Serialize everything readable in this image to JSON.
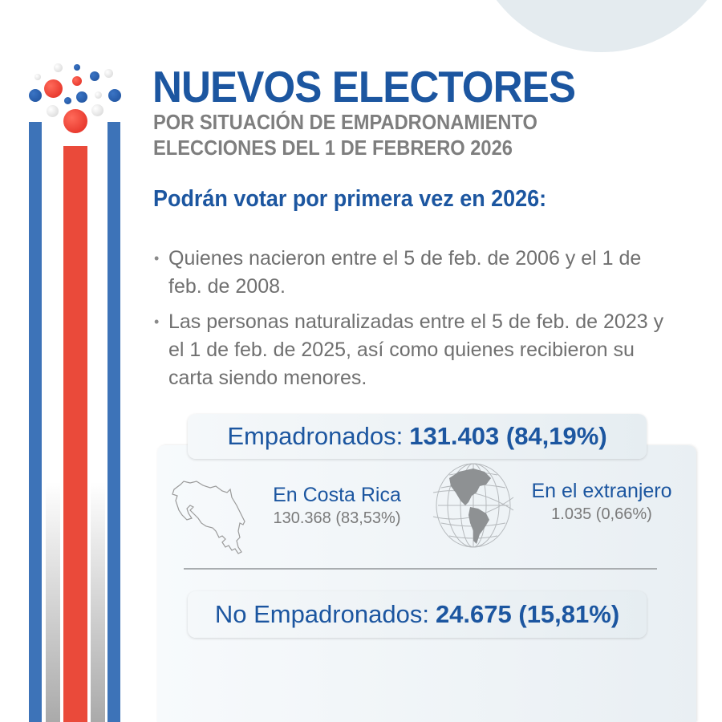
{
  "header": {
    "title": "NUEVOS ELECTORES",
    "subtitle_line1": "POR SITUACIÓN DE EMPADRONAMIENTO",
    "subtitle_line2": "ELECCIONES DEL 1 DE FEBRERO 2026"
  },
  "eligibility": {
    "heading": "Podrán votar por primera vez en 2026:",
    "bullets": [
      "Quienes nacieron entre el 5 de feb. de 2006 y el 1 de feb. de 2008.",
      "Las personas naturalizadas entre el 5 de feb. de 2023 y el 1 de feb. de 2025, así como quienes recibieron su carta siendo menores."
    ]
  },
  "registered": {
    "label": "Empadronados:",
    "value": "131.403 (84,19%)",
    "in_country": {
      "label": "En Costa Rica",
      "value": "130.368 (83,53%)",
      "icon": "costa-rica-map-icon"
    },
    "abroad": {
      "label": "En el extranjero",
      "value": "1.035 (0,66%)",
      "icon": "globe-icon"
    }
  },
  "not_registered": {
    "label": "No Empadronados:",
    "value": "24.675 (15,81%)"
  },
  "colors": {
    "brand_blue": "#1c56a0",
    "flag_blue": "#3d73b8",
    "flag_red": "#ea4a3a",
    "text_grey": "#707070"
  }
}
